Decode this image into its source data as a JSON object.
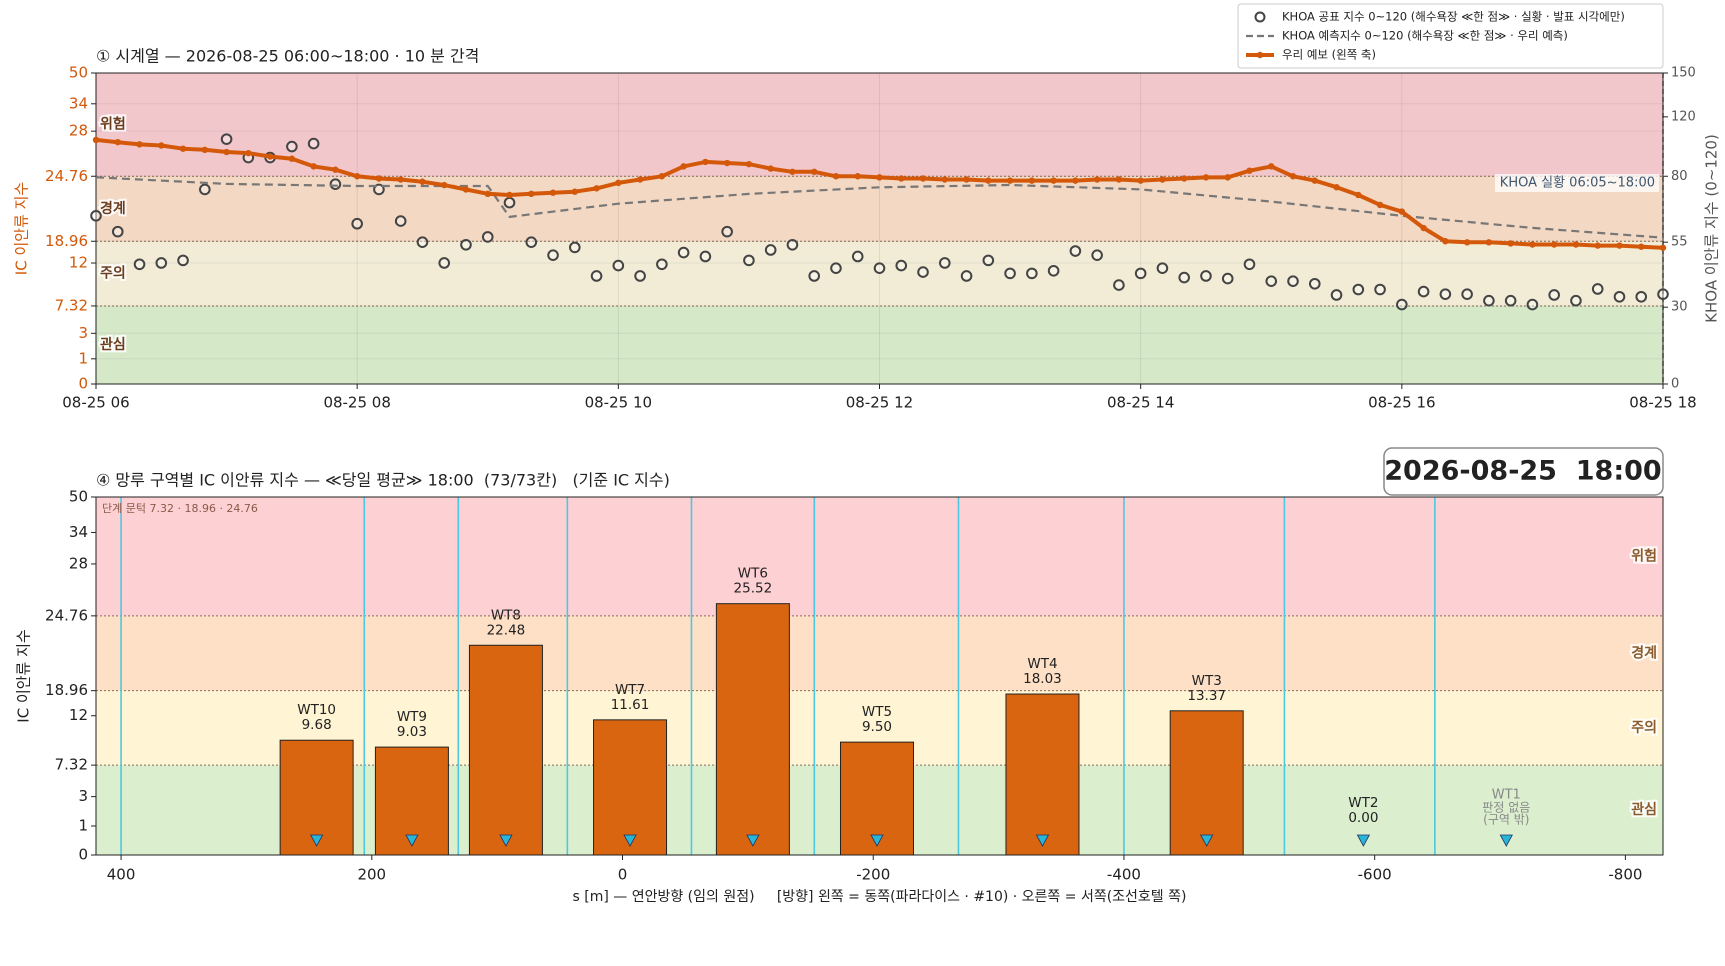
{
  "chart_data": [
    {
      "type": "line",
      "title": "① 시계열 — 2026-08-25 06:00~18:00 · 10 분 간격",
      "ylabel": "IC 이안류 지수",
      "y2label": "KHOA 이안류 지수 (0~120)",
      "annotation": "KHOA 실황 06:05~18:00",
      "legend": "upper right",
      "grid": true,
      "x": [
        "06:00",
        "06:10",
        "06:20",
        "06:30",
        "06:40",
        "06:50",
        "07:00",
        "07:10",
        "07:20",
        "07:30",
        "07:40",
        "07:50",
        "08:00",
        "08:10",
        "08:20",
        "08:30",
        "08:40",
        "08:50",
        "09:00",
        "09:10",
        "09:20",
        "09:30",
        "09:40",
        "09:50",
        "10:00",
        "10:10",
        "10:20",
        "10:30",
        "10:40",
        "10:50",
        "11:00",
        "11:10",
        "11:20",
        "11:30",
        "11:40",
        "11:50",
        "12:00",
        "12:10",
        "12:20",
        "12:30",
        "12:40",
        "12:50",
        "13:00",
        "13:10",
        "13:20",
        "13:30",
        "13:40",
        "13:50",
        "14:00",
        "14:10",
        "14:20",
        "14:30",
        "14:40",
        "14:50",
        "15:00",
        "15:10",
        "15:20",
        "15:30",
        "15:40",
        "15:50",
        "16:00",
        "16:10",
        "16:20",
        "16:30",
        "16:40",
        "16:50",
        "17:00",
        "17:10",
        "17:20",
        "17:30",
        "17:40",
        "17:50",
        "18:00"
      ],
      "xlim": [
        "06:00",
        "18:00"
      ],
      "xticks": [
        {
          "value": "06:00",
          "label": "08-25 06"
        },
        {
          "value": "08:00",
          "label": "08-25 08"
        },
        {
          "value": "10:00",
          "label": "08-25 10"
        },
        {
          "value": "12:00",
          "label": "08-25 12"
        },
        {
          "value": "14:00",
          "label": "08-25 14"
        },
        {
          "value": "16:00",
          "label": "08-25 16"
        },
        {
          "value": "18:00",
          "label": "08-25 18"
        }
      ],
      "ylim": [
        0,
        50
      ],
      "yticks": [
        0,
        1,
        3,
        7.32,
        12,
        18.96,
        24.76,
        28,
        34,
        50
      ],
      "yscale": "piecewise",
      "y2lim": [
        0,
        150
      ],
      "y2ticks": [
        0,
        30,
        55,
        80,
        120,
        150
      ],
      "bands": [
        {
          "from": 0,
          "to": 7.32,
          "label": "관심",
          "color": "#d5e8c8"
        },
        {
          "from": 7.32,
          "to": 18.96,
          "label": "주의",
          "color": "#f2ecd6"
        },
        {
          "from": 18.96,
          "to": 24.76,
          "label": "경계",
          "color": "#f3d8c3"
        },
        {
          "from": 24.76,
          "to": 50,
          "label": "위험",
          "color": "#f2c7cc"
        }
      ],
      "series": [
        {
          "name": "KHOA 공표 지수 0~120 (해수욕장 ≪한 점≫ · 실황 · 발표 시각에만)",
          "type": "scatter",
          "axis": "y2",
          "color": "#444444",
          "values": [
            65,
            59,
            46.5,
            47,
            48,
            75,
            105,
            92.6,
            92.6,
            100,
            102,
            77,
            62,
            75,
            63,
            55,
            47,
            54,
            57,
            70,
            55,
            50,
            53,
            42,
            46,
            42,
            46.5,
            51,
            49.5,
            59,
            48,
            52,
            54,
            42,
            45,
            49.5,
            45,
            46,
            43.5,
            47,
            42,
            48,
            43,
            43,
            44,
            51.6,
            50,
            38.5,
            43,
            45,
            41.4,
            42,
            41,
            46.5,
            40,
            40,
            39,
            34.7,
            36.8,
            36.8,
            31,
            36,
            35,
            35,
            32.5,
            32.5,
            31,
            34.7,
            32.5,
            37,
            34,
            34,
            35
          ]
        },
        {
          "name": "KHOA 예측지수 0~120 (해수욕장 ≪한 점≫ · 우리 예측)",
          "type": "line",
          "style": "dashed",
          "axis": "y2",
          "color": "#777777",
          "x": [
            "06:00",
            "07:00",
            "08:00",
            "09:00",
            "09:10",
            "10:00",
            "11:00",
            "12:00",
            "13:00",
            "14:00",
            "15:00",
            "16:00",
            "17:00",
            "18:00"
          ],
          "values": [
            79.6,
            77.1,
            76.3,
            76.3,
            64.6,
            69.6,
            73.3,
            75.8,
            76.7,
            75,
            70.4,
            65,
            60.4,
            56.7
          ]
        },
        {
          "name": "우리 예보 (왼쪽 축)",
          "type": "line",
          "marker": true,
          "color": "#d4580a",
          "values": [
            27.37,
            27.21,
            27.05,
            26.97,
            26.74,
            26.66,
            26.5,
            26.42,
            26.18,
            26.02,
            25.47,
            25.23,
            24.76,
            24.56,
            24.47,
            24.27,
            23.97,
            23.58,
            23.19,
            23.09,
            23.19,
            23.29,
            23.38,
            23.68,
            24.17,
            24.47,
            24.76,
            25.47,
            25.79,
            25.71,
            25.63,
            25.31,
            25.08,
            25.08,
            24.76,
            24.76,
            24.66,
            24.56,
            24.56,
            24.47,
            24.47,
            24.37,
            24.37,
            24.37,
            24.37,
            24.37,
            24.47,
            24.47,
            24.37,
            24.47,
            24.56,
            24.66,
            24.66,
            25.16,
            25.47,
            24.76,
            24.37,
            23.78,
            23.09,
            22.2,
            21.61,
            20.14,
            18.96,
            18.61,
            18.61,
            18.26,
            17.92,
            17.92,
            17.92,
            17.57,
            17.57,
            17.22,
            16.87
          ]
        }
      ]
    },
    {
      "type": "bar",
      "title": "④ 망루 구역별 IC 이안류 지수 — ≪당일 평균≫ 18:00  (73/73칸)   (기준 IC 지수)",
      "stamp": "2026-08-25  18:00",
      "note": "단계 문턱 7.32 · 18.96 · 24.76",
      "ylabel": "IC 이안류 지수",
      "xlabel": "s [m] — 연안방향 (임의 원점)     [방향] 왼쪽 = 동쪽(파라다이스 · #10) · 오른쪽 = 서쪽(조선호텔 쪽)",
      "categories": [
        "WT10",
        "WT9",
        "WT8",
        "WT7",
        "WT6",
        "WT5",
        "WT4",
        "WT3",
        "WT2",
        "WT1"
      ],
      "x": [
        244,
        168,
        93,
        -6,
        -104,
        -203,
        -335,
        -466,
        -591,
        -705
      ],
      "values": [
        9.68,
        9.03,
        22.48,
        11.61,
        25.52,
        9.5,
        18.03,
        13.37,
        0,
        null
      ],
      "value_labels": [
        "9.68",
        "9.03",
        "22.48",
        "11.61",
        "25.52",
        "9.50",
        "18.03",
        "13.37",
        "0.00",
        null
      ],
      "missing_label": [
        "판정 없음",
        "(구역 밖)"
      ],
      "boundaries": [
        400,
        206,
        131,
        44,
        -55,
        -153,
        -268,
        -400,
        -528,
        -648
      ],
      "color": "#d96510",
      "marker_color": "#29b6d6",
      "boundary_color": "#4cc9e0",
      "xlim": [
        420,
        -830
      ],
      "xticks": [
        400,
        200,
        0,
        -200,
        -400,
        -600,
        -800
      ],
      "ylim": [
        0,
        50
      ],
      "yticks": [
        0,
        1,
        3,
        7.32,
        12,
        18.96,
        24.76,
        28,
        34,
        50
      ],
      "yscale": "piecewise",
      "bands": [
        {
          "from": 0,
          "to": 7.32,
          "label": "관심",
          "color": "#dbefcf"
        },
        {
          "from": 7.32,
          "to": 18.96,
          "label": "주의",
          "color": "#fff4d4"
        },
        {
          "from": 18.96,
          "to": 24.76,
          "label": "경계",
          "color": "#fde0c6"
        },
        {
          "from": 24.76,
          "to": 50,
          "label": "위험",
          "color": "#fdd0d3"
        }
      ]
    }
  ]
}
